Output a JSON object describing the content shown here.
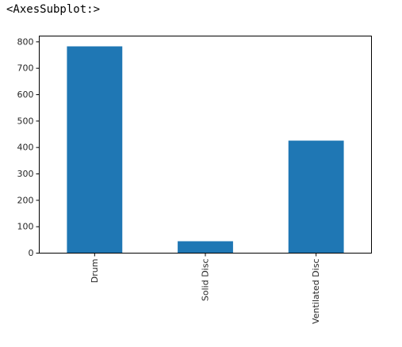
{
  "output": {
    "repr": "<AxesSubplot:>"
  },
  "chart_data": {
    "type": "bar",
    "categories": [
      "Drum",
      "Solid Disc",
      "Ventilated Disc"
    ],
    "values": [
      783,
      45,
      426
    ],
    "title": "",
    "xlabel": "",
    "ylabel": "",
    "ylim": [
      0,
      822
    ],
    "yticks": [
      0,
      100,
      200,
      300,
      400,
      500,
      600,
      700,
      800
    ],
    "bar_color": "#1f77b4",
    "grid": false,
    "legend": "none",
    "x_tick_rotation": "vertical"
  }
}
